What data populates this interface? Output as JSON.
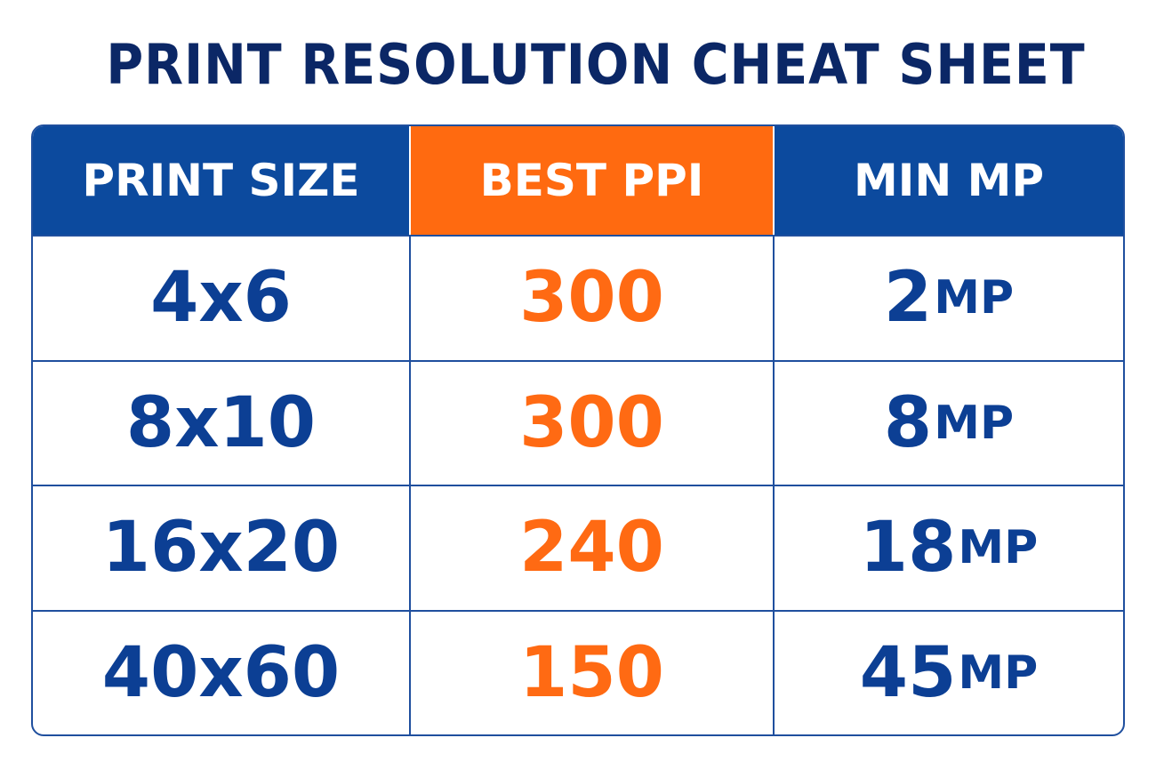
{
  "header": {
    "title": "PRINT RESOLUTION CHEAT SHEET"
  },
  "table": {
    "columns": [
      "PRINT SIZE",
      "BEST PPI",
      "MIN MP"
    ],
    "rows": [
      {
        "size": "4x6",
        "ppi": "300",
        "mp": {
          "value": "2",
          "unit": "MP"
        }
      },
      {
        "size": "8x10",
        "ppi": "300",
        "mp": {
          "value": "8",
          "unit": "MP"
        }
      },
      {
        "size": "16x20",
        "ppi": "240",
        "mp": {
          "value": "18",
          "unit": "MP"
        }
      },
      {
        "size": "40x60",
        "ppi": "150",
        "mp": {
          "value": "45",
          "unit": "MP"
        }
      }
    ]
  }
}
